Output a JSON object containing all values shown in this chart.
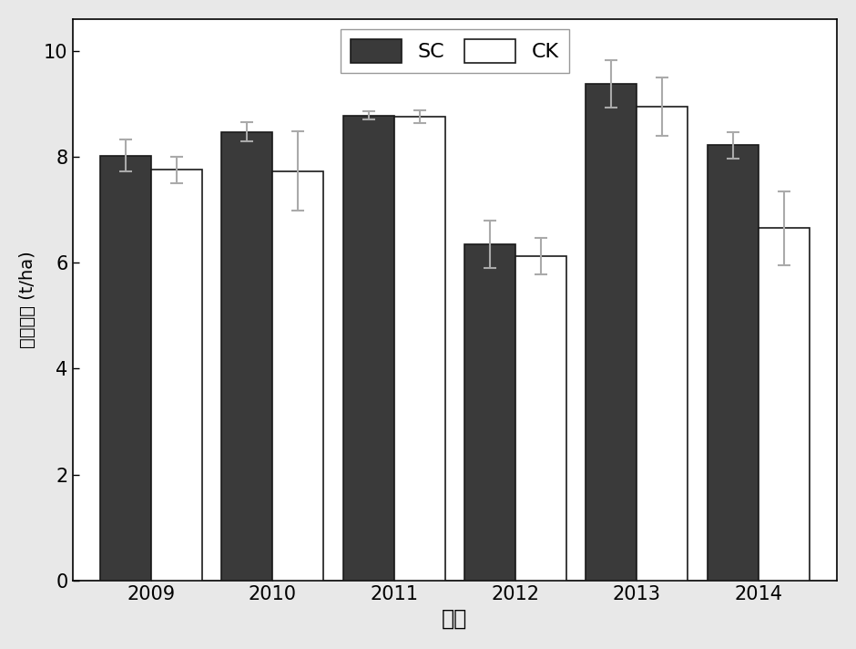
{
  "years": [
    "2009",
    "2010",
    "2011",
    "2012",
    "2013",
    "2014"
  ],
  "SC_values": [
    8.02,
    8.47,
    8.78,
    6.35,
    9.37,
    8.22
  ],
  "CK_values": [
    7.75,
    7.73,
    8.75,
    6.12,
    8.95,
    6.65
  ],
  "SC_errors": [
    0.3,
    0.18,
    0.08,
    0.45,
    0.45,
    0.25
  ],
  "CK_errors": [
    0.25,
    0.75,
    0.12,
    0.35,
    0.55,
    0.7
  ],
  "SC_color": "#3a3a3a",
  "CK_color": "#ffffff",
  "bar_edge_color": "#1a1a1a",
  "error_color": "#aaaaaa",
  "ylabel": "水稺产量 (t/ha)",
  "xlabel": "年份",
  "ylim": [
    0,
    10.6
  ],
  "yticks": [
    0,
    2,
    4,
    6,
    8,
    10
  ],
  "bar_width": 0.42,
  "legend_SC": "SC",
  "legend_CK": "CK",
  "figure_bg": "#e8e8e8",
  "axes_bg": "#ffffff"
}
